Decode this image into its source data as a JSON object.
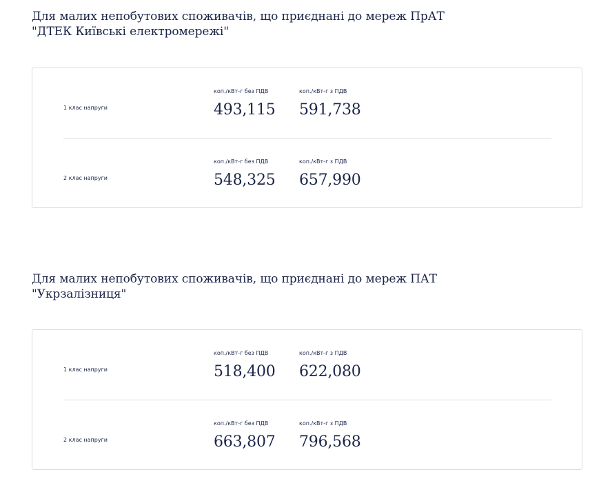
{
  "sections": [
    {
      "title_line1": "Для малих непобутових споживачів, що приєднані до мереж ПрАТ",
      "title_line2": "\"ДТЕК Київські електромережі\"",
      "rows": [
        {
          "label": "1 клас напруги",
          "caption_no_vat": "коп./кВт-г без ПДВ",
          "value_no_vat": "493,115",
          "caption_vat": "коп./кВт-г з ПДВ",
          "value_vat": "591,738"
        },
        {
          "label": "2 клас напруги",
          "caption_no_vat": "коп./кВт-г без ПДВ",
          "value_no_vat": "548,325",
          "caption_vat": "коп./кВт-г з ПДВ",
          "value_vat": "657,990"
        }
      ]
    },
    {
      "title_line1": "Для малих непобутових споживачів, що приєднані до мереж ПАТ",
      "title_line2": "\"Укрзалізниця\"",
      "rows": [
        {
          "label": "1 клас напруги",
          "caption_no_vat": "коп./кВт-г без ПДВ",
          "value_no_vat": "518,400",
          "caption_vat": "коп./кВт-г з ПДВ",
          "value_vat": "622,080"
        },
        {
          "label": "2 клас напруги",
          "caption_no_vat": "коп./кВт-г без ПДВ",
          "value_no_vat": "663,807",
          "caption_vat": "коп./кВт-г з ПДВ",
          "value_vat": "796,568"
        }
      ]
    }
  ],
  "colors": {
    "text": "#1b2548",
    "border": "#d5dde6",
    "background": "#ffffff"
  }
}
